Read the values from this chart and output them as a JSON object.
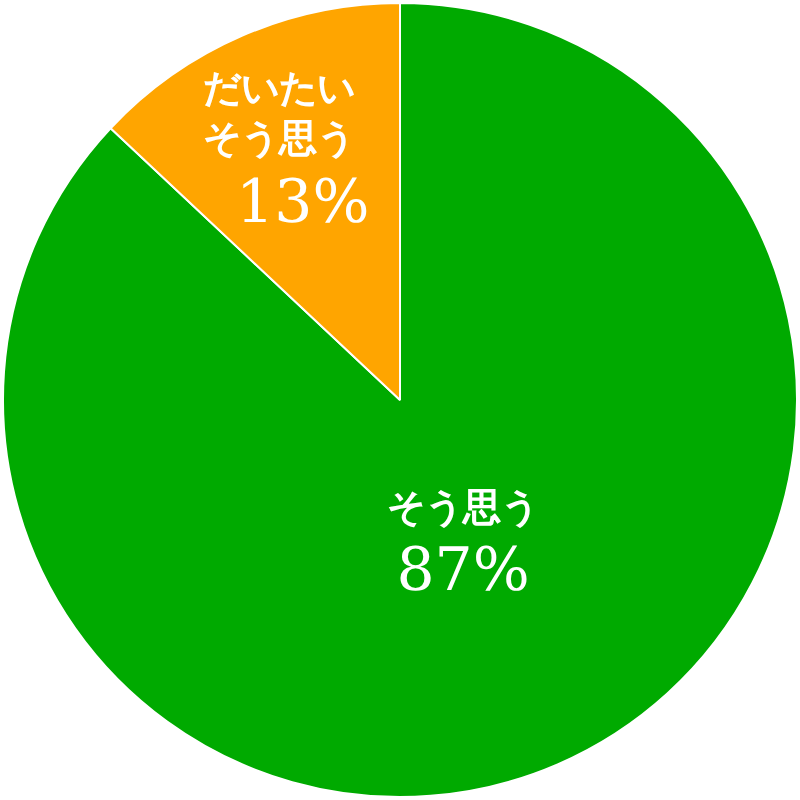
{
  "chart_data": {
    "type": "pie",
    "categories": [
      "そう思う",
      "だいたいそう思う"
    ],
    "values": [
      87,
      13
    ],
    "colors": [
      "#00aa00",
      "#ffa500"
    ],
    "value_labels": [
      "87%",
      "13%"
    ],
    "legend": false
  }
}
